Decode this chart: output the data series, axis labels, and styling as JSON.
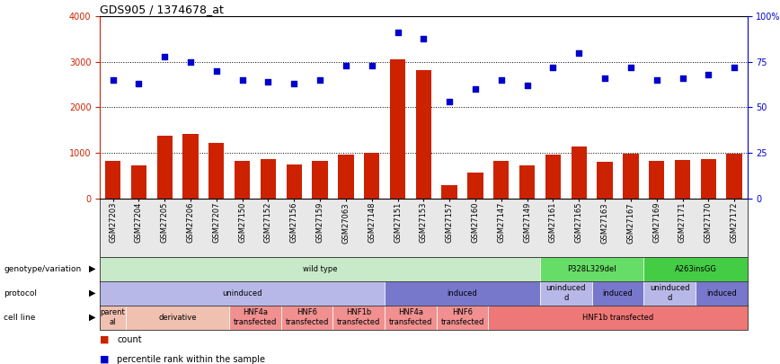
{
  "title": "GDS905 / 1374678_at",
  "samples": [
    "GSM27203",
    "GSM27204",
    "GSM27205",
    "GSM27206",
    "GSM27207",
    "GSM27150",
    "GSM27152",
    "GSM27156",
    "GSM27159",
    "GSM27063",
    "GSM27148",
    "GSM27151",
    "GSM27153",
    "GSM27157",
    "GSM27160",
    "GSM27147",
    "GSM27149",
    "GSM27161",
    "GSM27165",
    "GSM27163",
    "GSM27167",
    "GSM27169",
    "GSM27171",
    "GSM27170",
    "GSM27172"
  ],
  "counts": [
    820,
    720,
    1380,
    1420,
    1220,
    820,
    870,
    750,
    820,
    960,
    1000,
    3050,
    2820,
    290,
    560,
    820,
    720,
    960,
    1140,
    800,
    980,
    820,
    840,
    870,
    990
  ],
  "percentiles": [
    65,
    63,
    78,
    75,
    70,
    65,
    64,
    63,
    65,
    73,
    73,
    91,
    88,
    53,
    60,
    65,
    62,
    72,
    80,
    66,
    72,
    65,
    66,
    68,
    72
  ],
  "bar_color": "#cc2200",
  "dot_color": "#0000cc",
  "ylim_left": [
    0,
    4000
  ],
  "ylim_right": [
    0,
    100
  ],
  "yticks_left": [
    0,
    1000,
    2000,
    3000,
    4000
  ],
  "yticks_right": [
    0,
    25,
    50,
    75,
    100
  ],
  "ytick_labels_right": [
    "0",
    "25",
    "50",
    "75",
    "100%"
  ],
  "background_color": "#ffffff",
  "annotation_rows": {
    "genotype_variation": {
      "label": "genotype/variation",
      "segments": [
        {
          "text": "wild type",
          "start": 0,
          "end": 17,
          "color": "#c8eac8"
        },
        {
          "text": "P328L329del",
          "start": 17,
          "end": 21,
          "color": "#66dd66"
        },
        {
          "text": "A263insGG",
          "start": 21,
          "end": 25,
          "color": "#44cc44"
        }
      ]
    },
    "protocol": {
      "label": "protocol",
      "segments": [
        {
          "text": "uninduced",
          "start": 0,
          "end": 11,
          "color": "#b8b8e8"
        },
        {
          "text": "induced",
          "start": 11,
          "end": 17,
          "color": "#7777cc"
        },
        {
          "text": "uninduced\nd",
          "start": 17,
          "end": 19,
          "color": "#b8b8e8"
        },
        {
          "text": "induced",
          "start": 19,
          "end": 21,
          "color": "#7777cc"
        },
        {
          "text": "uninduced\nd",
          "start": 21,
          "end": 23,
          "color": "#b8b8e8"
        },
        {
          "text": "induced",
          "start": 23,
          "end": 25,
          "color": "#7777cc"
        }
      ]
    },
    "cell_line": {
      "label": "cell line",
      "segments": [
        {
          "text": "parent\nal",
          "start": 0,
          "end": 1,
          "color": "#f0c0b0"
        },
        {
          "text": "derivative",
          "start": 1,
          "end": 5,
          "color": "#f0c0b0"
        },
        {
          "text": "HNF4a\ntransfected",
          "start": 5,
          "end": 7,
          "color": "#f09090"
        },
        {
          "text": "HNF6\ntransfected",
          "start": 7,
          "end": 9,
          "color": "#f09090"
        },
        {
          "text": "HNF1b\ntransfected",
          "start": 9,
          "end": 11,
          "color": "#f09090"
        },
        {
          "text": "HNF4a\ntransfected",
          "start": 11,
          "end": 13,
          "color": "#f09090"
        },
        {
          "text": "HNF6\ntransfected",
          "start": 13,
          "end": 15,
          "color": "#f09090"
        },
        {
          "text": "HNF1b transfected",
          "start": 15,
          "end": 25,
          "color": "#ee7777"
        }
      ]
    }
  },
  "legend": [
    {
      "color": "#cc2200",
      "label": "count"
    },
    {
      "color": "#0000cc",
      "label": "percentile rank within the sample"
    }
  ],
  "fig_width": 8.68,
  "fig_height": 4.05,
  "dpi": 100
}
